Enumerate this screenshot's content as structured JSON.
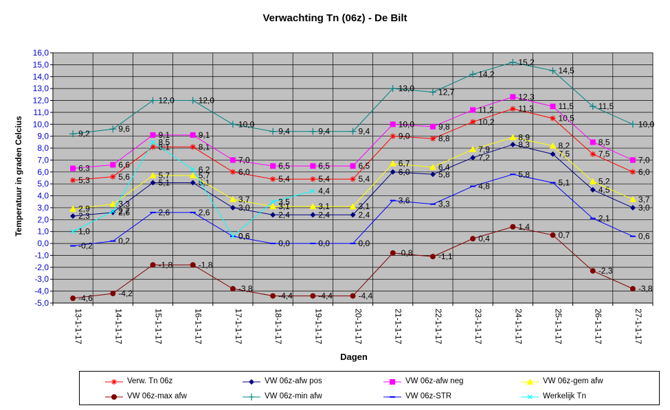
{
  "chart_data": {
    "type": "line",
    "title": "Verwachting Tn (06z) - De Bilt",
    "xlabel": "Dagen",
    "ylabel": "Temperatuur in graden Celcius",
    "categories": [
      "13-1-1-17",
      "14-1-1-17",
      "15-1-1-17",
      "16-1-1-17",
      "17-1-1-17",
      "18-1-1-17",
      "19-1-1-17",
      "20-1-1-17",
      "21-1-1-17",
      "22-1-1-17",
      "23-1-1-17",
      "24-1-1-17",
      "25-1-1-17",
      "26-1-1-17",
      "27-1-1-17"
    ],
    "ylim": [
      -5.0,
      16.0
    ],
    "ytick_step": 1.0,
    "yticks": [
      "16,0",
      "15,0",
      "14,0",
      "13,0",
      "12,0",
      "11,0",
      "10,0",
      "9,0",
      "8,0",
      "7,0",
      "6,0",
      "5,0",
      "4,0",
      "3,0",
      "2,0",
      "1,0",
      "0,0",
      "-1,0",
      "-2,0",
      "-3,0",
      "-4,0",
      "-5,0"
    ],
    "grid": true,
    "plot_background": "#c0c0c0",
    "legend_position": "bottom",
    "series": [
      {
        "name": "Verw. Tn 06z",
        "color": "#ff0000",
        "marker": "star",
        "values": [
          5.3,
          5.6,
          8.1,
          8.1,
          6.0,
          5.4,
          5.4,
          5.4,
          9.0,
          8.8,
          10.2,
          11.3,
          10.5,
          7.5,
          6.0
        ],
        "labels": [
          "5,3",
          "5,6",
          "8,1",
          "8,1",
          "6,0",
          "5,4",
          "5,4",
          "5,4",
          "9,0",
          "8,8",
          "10,2",
          "11,3",
          "10,5",
          "7,5",
          "6,0"
        ]
      },
      {
        "name": "VW 06z-afw pos",
        "color": "#000080",
        "marker": "diamond",
        "values": [
          2.3,
          2.6,
          5.1,
          5.1,
          3.0,
          2.4,
          2.4,
          2.4,
          6.0,
          5.8,
          7.2,
          8.3,
          7.5,
          4.5,
          3.0
        ],
        "labels": [
          "2,3",
          "2,6",
          "5,1",
          "5,1",
          "3,0",
          "2,4",
          "2,4",
          "2,4",
          "6,0",
          "5,8",
          "7,2",
          "8,3",
          "7,5",
          "4,5",
          "3,0"
        ]
      },
      {
        "name": "VW 06z-afw neg",
        "color": "#ff00ff",
        "marker": "square",
        "values": [
          6.3,
          6.6,
          9.1,
          9.1,
          7.0,
          6.5,
          6.5,
          6.5,
          10.0,
          9.8,
          11.2,
          12.3,
          11.5,
          8.5,
          7.0
        ],
        "labels": [
          "6,3",
          "6,6",
          "9,1",
          "9,1",
          "7,0",
          "6,5",
          "6,5",
          "6,5",
          "10,0",
          "9,8",
          "11,2",
          "12,3",
          "11,5",
          "8,5",
          "7,0"
        ]
      },
      {
        "name": "VW 06z-gem afw",
        "color": "#ffff00",
        "marker": "triangle",
        "values": [
          2.9,
          3.3,
          5.7,
          5.7,
          3.7,
          3.1,
          3.1,
          3.1,
          6.7,
          6.4,
          7.9,
          8.9,
          8.2,
          5.2,
          3.7
        ],
        "labels": [
          "2,9",
          "3,3",
          "5,7",
          "5,7",
          "3,7",
          "3,1",
          "3,1",
          "3,1",
          "6,7",
          "6,4",
          "7,9",
          "8,9",
          "8,2",
          "5,2",
          "3,7"
        ]
      },
      {
        "name": "VW 06z-max afw",
        "color": "#800000",
        "marker": "circle",
        "values": [
          -4.6,
          -4.2,
          -1.8,
          -1.8,
          -3.8,
          -4.4,
          -4.4,
          -4.4,
          -0.8,
          -1.1,
          0.4,
          1.4,
          0.7,
          -2.3,
          -3.8
        ],
        "labels": [
          "-4,6",
          "-4,2",
          "-1,8",
          "-1,8",
          "-3,8",
          "-4,4",
          "-4,4",
          "-4,4",
          "-0,8",
          "-1,1",
          "0,4",
          "1,4",
          "0,7",
          "-2,3",
          "-3,8"
        ]
      },
      {
        "name": "VW 06z-min afw",
        "color": "#008080",
        "marker": "plus",
        "values": [
          9.2,
          9.6,
          12.0,
          12.0,
          10.0,
          9.4,
          9.4,
          9.4,
          13.0,
          12.7,
          14.2,
          15.2,
          14.5,
          11.5,
          10.0
        ],
        "labels": [
          "9,2",
          "9,6",
          "12,0",
          "12,0",
          "10,0",
          "9,4",
          "9,4",
          "9,4",
          "13,0",
          "12,7",
          "14,2",
          "15,2",
          "14,5",
          "11,5",
          "10,0"
        ]
      },
      {
        "name": "VW 06z-STR",
        "color": "#0000ff",
        "marker": "dash",
        "values": [
          -0.2,
          0.2,
          2.6,
          2.6,
          0.6,
          0.0,
          0.0,
          0.0,
          3.6,
          3.3,
          4.8,
          5.8,
          5.1,
          2.1,
          0.6
        ],
        "labels": [
          "-0,2",
          "0,2",
          "2,6",
          "2,6",
          "0,6",
          "0,0",
          "0,0",
          "0,0",
          "3,6",
          "3,3",
          "4,8",
          "5,8",
          "5,1",
          "2,1",
          "0,6"
        ]
      },
      {
        "name": "Werkelijk Tn",
        "color": "#00ffff",
        "marker": "x",
        "values": [
          1.0,
          2.7,
          8.5,
          6.2,
          0.6,
          3.5,
          4.4,
          null,
          null,
          null,
          null,
          null,
          null,
          null,
          null
        ],
        "labels": [
          "1,0",
          "2,7",
          "8,5",
          "6,2",
          "0,6",
          "3,5",
          "4,4",
          null,
          null,
          null,
          null,
          null,
          null,
          null,
          null
        ]
      }
    ]
  }
}
